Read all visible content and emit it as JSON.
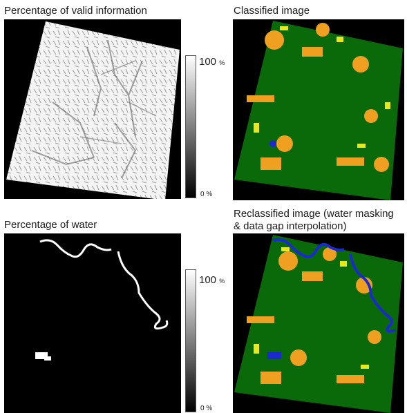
{
  "figure": {
    "panels": [
      {
        "id": "valid",
        "title": "Percentage of valid information",
        "colorbar": {
          "max_label": "100",
          "max_unit": "%",
          "min_label": "0 %"
        }
      },
      {
        "id": "classified",
        "title": "Classified image"
      },
      {
        "id": "water",
        "title": "Percentage of water",
        "colorbar": {
          "max_label": "100",
          "max_unit": "%",
          "min_label": "0 %"
        }
      },
      {
        "id": "reclassified",
        "title_line1": "Reclassified image (water masking",
        "title_line2": "& data gap interpolation)"
      }
    ],
    "class_colors": {
      "vegetation": "#0a6a0a",
      "sparse_vegetation": "#f0a020",
      "bright_bare": "#e8e820",
      "water": "#1a2ad0",
      "nodata": "#000000"
    }
  }
}
